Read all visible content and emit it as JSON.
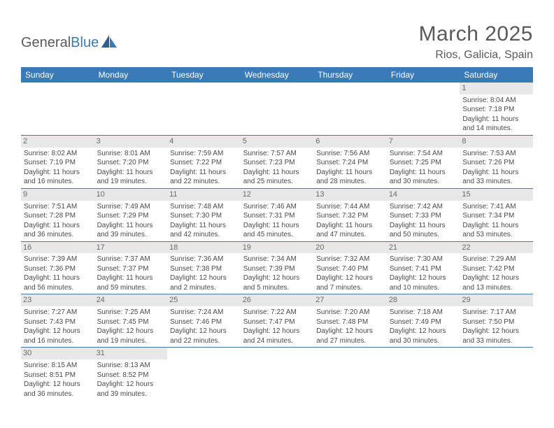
{
  "logo": {
    "text1": "General",
    "text2": "Blue"
  },
  "title": "March 2025",
  "location": "Rios, Galicia, Spain",
  "colors": {
    "header_bg": "#3a7ab8",
    "header_fg": "#ffffff",
    "daynum_bg": "#e8e8e8",
    "daynum_fg": "#6a6a6a",
    "cell_border": "#3a7ab8",
    "text": "#4a4a4a",
    "title_color": "#5a5a5a"
  },
  "weekdays": [
    "Sunday",
    "Monday",
    "Tuesday",
    "Wednesday",
    "Thursday",
    "Friday",
    "Saturday"
  ],
  "weeks": [
    [
      null,
      null,
      null,
      null,
      null,
      null,
      {
        "n": "1",
        "sr": "Sunrise: 8:04 AM",
        "ss": "Sunset: 7:18 PM",
        "dl1": "Daylight: 11 hours",
        "dl2": "and 14 minutes."
      }
    ],
    [
      {
        "n": "2",
        "sr": "Sunrise: 8:02 AM",
        "ss": "Sunset: 7:19 PM",
        "dl1": "Daylight: 11 hours",
        "dl2": "and 16 minutes."
      },
      {
        "n": "3",
        "sr": "Sunrise: 8:01 AM",
        "ss": "Sunset: 7:20 PM",
        "dl1": "Daylight: 11 hours",
        "dl2": "and 19 minutes."
      },
      {
        "n": "4",
        "sr": "Sunrise: 7:59 AM",
        "ss": "Sunset: 7:22 PM",
        "dl1": "Daylight: 11 hours",
        "dl2": "and 22 minutes."
      },
      {
        "n": "5",
        "sr": "Sunrise: 7:57 AM",
        "ss": "Sunset: 7:23 PM",
        "dl1": "Daylight: 11 hours",
        "dl2": "and 25 minutes."
      },
      {
        "n": "6",
        "sr": "Sunrise: 7:56 AM",
        "ss": "Sunset: 7:24 PM",
        "dl1": "Daylight: 11 hours",
        "dl2": "and 28 minutes."
      },
      {
        "n": "7",
        "sr": "Sunrise: 7:54 AM",
        "ss": "Sunset: 7:25 PM",
        "dl1": "Daylight: 11 hours",
        "dl2": "and 30 minutes."
      },
      {
        "n": "8",
        "sr": "Sunrise: 7:53 AM",
        "ss": "Sunset: 7:26 PM",
        "dl1": "Daylight: 11 hours",
        "dl2": "and 33 minutes."
      }
    ],
    [
      {
        "n": "9",
        "sr": "Sunrise: 7:51 AM",
        "ss": "Sunset: 7:28 PM",
        "dl1": "Daylight: 11 hours",
        "dl2": "and 36 minutes."
      },
      {
        "n": "10",
        "sr": "Sunrise: 7:49 AM",
        "ss": "Sunset: 7:29 PM",
        "dl1": "Daylight: 11 hours",
        "dl2": "and 39 minutes."
      },
      {
        "n": "11",
        "sr": "Sunrise: 7:48 AM",
        "ss": "Sunset: 7:30 PM",
        "dl1": "Daylight: 11 hours",
        "dl2": "and 42 minutes."
      },
      {
        "n": "12",
        "sr": "Sunrise: 7:46 AM",
        "ss": "Sunset: 7:31 PM",
        "dl1": "Daylight: 11 hours",
        "dl2": "and 45 minutes."
      },
      {
        "n": "13",
        "sr": "Sunrise: 7:44 AM",
        "ss": "Sunset: 7:32 PM",
        "dl1": "Daylight: 11 hours",
        "dl2": "and 47 minutes."
      },
      {
        "n": "14",
        "sr": "Sunrise: 7:42 AM",
        "ss": "Sunset: 7:33 PM",
        "dl1": "Daylight: 11 hours",
        "dl2": "and 50 minutes."
      },
      {
        "n": "15",
        "sr": "Sunrise: 7:41 AM",
        "ss": "Sunset: 7:34 PM",
        "dl1": "Daylight: 11 hours",
        "dl2": "and 53 minutes."
      }
    ],
    [
      {
        "n": "16",
        "sr": "Sunrise: 7:39 AM",
        "ss": "Sunset: 7:36 PM",
        "dl1": "Daylight: 11 hours",
        "dl2": "and 56 minutes."
      },
      {
        "n": "17",
        "sr": "Sunrise: 7:37 AM",
        "ss": "Sunset: 7:37 PM",
        "dl1": "Daylight: 11 hours",
        "dl2": "and 59 minutes."
      },
      {
        "n": "18",
        "sr": "Sunrise: 7:36 AM",
        "ss": "Sunset: 7:38 PM",
        "dl1": "Daylight: 12 hours",
        "dl2": "and 2 minutes."
      },
      {
        "n": "19",
        "sr": "Sunrise: 7:34 AM",
        "ss": "Sunset: 7:39 PM",
        "dl1": "Daylight: 12 hours",
        "dl2": "and 5 minutes."
      },
      {
        "n": "20",
        "sr": "Sunrise: 7:32 AM",
        "ss": "Sunset: 7:40 PM",
        "dl1": "Daylight: 12 hours",
        "dl2": "and 7 minutes."
      },
      {
        "n": "21",
        "sr": "Sunrise: 7:30 AM",
        "ss": "Sunset: 7:41 PM",
        "dl1": "Daylight: 12 hours",
        "dl2": "and 10 minutes."
      },
      {
        "n": "22",
        "sr": "Sunrise: 7:29 AM",
        "ss": "Sunset: 7:42 PM",
        "dl1": "Daylight: 12 hours",
        "dl2": "and 13 minutes."
      }
    ],
    [
      {
        "n": "23",
        "sr": "Sunrise: 7:27 AM",
        "ss": "Sunset: 7:43 PM",
        "dl1": "Daylight: 12 hours",
        "dl2": "and 16 minutes."
      },
      {
        "n": "24",
        "sr": "Sunrise: 7:25 AM",
        "ss": "Sunset: 7:45 PM",
        "dl1": "Daylight: 12 hours",
        "dl2": "and 19 minutes."
      },
      {
        "n": "25",
        "sr": "Sunrise: 7:24 AM",
        "ss": "Sunset: 7:46 PM",
        "dl1": "Daylight: 12 hours",
        "dl2": "and 22 minutes."
      },
      {
        "n": "26",
        "sr": "Sunrise: 7:22 AM",
        "ss": "Sunset: 7:47 PM",
        "dl1": "Daylight: 12 hours",
        "dl2": "and 24 minutes."
      },
      {
        "n": "27",
        "sr": "Sunrise: 7:20 AM",
        "ss": "Sunset: 7:48 PM",
        "dl1": "Daylight: 12 hours",
        "dl2": "and 27 minutes."
      },
      {
        "n": "28",
        "sr": "Sunrise: 7:18 AM",
        "ss": "Sunset: 7:49 PM",
        "dl1": "Daylight: 12 hours",
        "dl2": "and 30 minutes."
      },
      {
        "n": "29",
        "sr": "Sunrise: 7:17 AM",
        "ss": "Sunset: 7:50 PM",
        "dl1": "Daylight: 12 hours",
        "dl2": "and 33 minutes."
      }
    ],
    [
      {
        "n": "30",
        "sr": "Sunrise: 8:15 AM",
        "ss": "Sunset: 8:51 PM",
        "dl1": "Daylight: 12 hours",
        "dl2": "and 36 minutes."
      },
      {
        "n": "31",
        "sr": "Sunrise: 8:13 AM",
        "ss": "Sunset: 8:52 PM",
        "dl1": "Daylight: 12 hours",
        "dl2": "and 39 minutes."
      },
      null,
      null,
      null,
      null,
      null
    ]
  ]
}
